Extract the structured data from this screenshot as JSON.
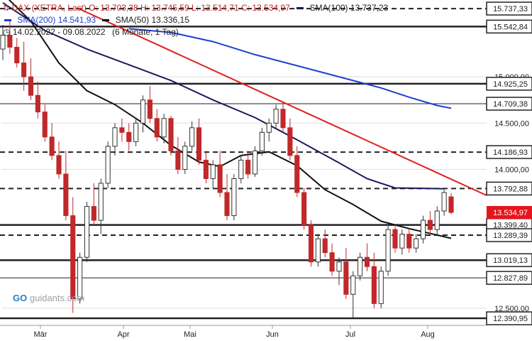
{
  "legend": {
    "instrument": "DAX (XETRA, Last)",
    "ohlc": "O: 13.703,38  H: 13.745,59  L: 13.514,71  C: 13.534,97",
    "sma100_label": "SMA(100)",
    "sma100_value": "13.737,23",
    "sma200_label": "SMA(200)",
    "sma200_value": "14.541,93",
    "sma50_label": "SMA(50)",
    "sma50_value": "13.336,15",
    "range": "14.02.2022 - 09.08.2022",
    "period": "(6 Monate, 1 Tag)"
  },
  "brand": "guidants.com",
  "colors": {
    "sma100": "#1a1a5c",
    "sma200": "#1f3fd1",
    "sma50": "#111111",
    "trendline": "#e02020",
    "up": "#333333",
    "down": "#c0282a",
    "last_badge": "#e8141c"
  },
  "chart_data": {
    "type": "candlestick",
    "x_labels": [
      "Mär",
      "Apr",
      "Mai",
      "Jun",
      "Jul",
      "Aug"
    ],
    "y_axis_ticks": [
      {
        "value": 15000,
        "label": "15.000,00"
      },
      {
        "value": 14500,
        "label": "14.500,00"
      },
      {
        "value": 14000,
        "label": "14.000,00"
      },
      {
        "value": 12500,
        "label": "12.500,00"
      }
    ],
    "ylim": [
      12330,
      15830
    ],
    "levels": [
      {
        "value": 15737.33,
        "label": "15.737,33",
        "style": "dashed"
      },
      {
        "value": 15542.84,
        "label": "15.542,84",
        "style": "solid-thick"
      },
      {
        "value": 14925.25,
        "label": "14.925,25",
        "style": "solid-thick"
      },
      {
        "value": 14709.38,
        "label": "14.709,38",
        "style": "solid-thin"
      },
      {
        "value": 14186.93,
        "label": "14.186,93",
        "style": "dashed"
      },
      {
        "value": 13792.88,
        "label": "13.792,88",
        "style": "dashed"
      },
      {
        "value": 13399.4,
        "label": "13.399,40",
        "style": "solid-thick"
      },
      {
        "value": 13289.39,
        "label": "13.289,39",
        "style": "dashed"
      },
      {
        "value": 13019.13,
        "label": "13.019,13",
        "style": "solid-thick"
      },
      {
        "value": 12827.89,
        "label": "12.827,89",
        "style": "solid-thin"
      },
      {
        "value": 12390.95,
        "label": "12.390,95",
        "style": "solid-thick"
      }
    ],
    "last_price": {
      "value": 13534.97,
      "label": "13.534,97"
    },
    "trendline": [
      {
        "x": "14.02.2022",
        "y": 15740
      },
      {
        "x": "09.08.2022",
        "y": 13880
      }
    ],
    "candles": [
      [
        15300,
        15560,
        15180,
        15450
      ],
      [
        15450,
        15600,
        15250,
        15320
      ],
      [
        15320,
        15420,
        15100,
        15150
      ],
      [
        15150,
        15380,
        14850,
        15000
      ],
      [
        15000,
        15200,
        14750,
        14800
      ],
      [
        14800,
        14950,
        14550,
        14620
      ],
      [
        14620,
        14700,
        14300,
        14350
      ],
      [
        14350,
        14500,
        14100,
        14150
      ],
      [
        14150,
        14300,
        13900,
        13950
      ],
      [
        13950,
        14200,
        13450,
        13500
      ],
      [
        13500,
        13700,
        12450,
        12600
      ],
      [
        12600,
        13100,
        12550,
        13050
      ],
      [
        13050,
        13650,
        13000,
        13600
      ],
      [
        13600,
        13850,
        13400,
        13450
      ],
      [
        13450,
        13900,
        13300,
        13850
      ],
      [
        13850,
        14300,
        13800,
        14250
      ],
      [
        14250,
        14500,
        14150,
        14450
      ],
      [
        14450,
        14550,
        14300,
        14400
      ],
      [
        14400,
        14500,
        14200,
        14300
      ],
      [
        14300,
        14550,
        14250,
        14500
      ],
      [
        14500,
        14800,
        14400,
        14750
      ],
      [
        14750,
        14900,
        14500,
        14550
      ],
      [
        14550,
        14650,
        14300,
        14350
      ],
      [
        14350,
        14600,
        14280,
        14550
      ],
      [
        14550,
        14580,
        14150,
        14200
      ],
      [
        14200,
        14350,
        13950,
        14000
      ],
      [
        14000,
        14300,
        13950,
        14250
      ],
      [
        14250,
        14520,
        14200,
        14450
      ],
      [
        14450,
        14550,
        14050,
        14100
      ],
      [
        14100,
        14200,
        13850,
        13900
      ],
      [
        13900,
        14100,
        13800,
        14050
      ],
      [
        14050,
        14200,
        13700,
        13750
      ],
      [
        13750,
        13950,
        13450,
        13500
      ],
      [
        13500,
        13950,
        13450,
        13900
      ],
      [
        13900,
        14150,
        13850,
        14100
      ],
      [
        14100,
        14200,
        13900,
        13950
      ],
      [
        13950,
        14250,
        13920,
        14200
      ],
      [
        14200,
        14450,
        14150,
        14400
      ],
      [
        14400,
        14550,
        14300,
        14500
      ],
      [
        14500,
        14700,
        14450,
        14650
      ],
      [
        14650,
        14720,
        14400,
        14450
      ],
      [
        14450,
        14550,
        14100,
        14150
      ],
      [
        14150,
        14250,
        13700,
        13750
      ],
      [
        13750,
        13800,
        13350,
        13400
      ],
      [
        13400,
        13450,
        12950,
        13000
      ],
      [
        13000,
        13300,
        12950,
        13250
      ],
      [
        13250,
        13350,
        13050,
        13100
      ],
      [
        13100,
        13200,
        12850,
        12900
      ],
      [
        12900,
        13050,
        12750,
        13000
      ],
      [
        13000,
        13150,
        12600,
        12650
      ],
      [
        12650,
        12900,
        12400,
        12850
      ],
      [
        12850,
        13100,
        12800,
        13050
      ],
      [
        13050,
        13200,
        12900,
        12950
      ],
      [
        12950,
        13100,
        12500,
        12550
      ],
      [
        12550,
        12950,
        12500,
        12900
      ],
      [
        12900,
        13400,
        12850,
        13350
      ],
      [
        13350,
        13400,
        13100,
        13150
      ],
      [
        13150,
        13350,
        13080,
        13300
      ],
      [
        13300,
        13350,
        13100,
        13150
      ],
      [
        13150,
        13300,
        13100,
        13250
      ],
      [
        13250,
        13500,
        13200,
        13450
      ],
      [
        13450,
        13550,
        13300,
        13350
      ],
      [
        13350,
        13600,
        13300,
        13550
      ],
      [
        13550,
        13780,
        13500,
        13750
      ],
      [
        13703.38,
        13745.59,
        13514.71,
        13534.97
      ]
    ],
    "sma50": [
      [
        0,
        15900
      ],
      [
        4,
        15600
      ],
      [
        8,
        15150
      ],
      [
        12,
        14850
      ],
      [
        16,
        14700
      ],
      [
        20,
        14500
      ],
      [
        24,
        14260
      ],
      [
        28,
        14080
      ],
      [
        31,
        14030
      ],
      [
        34,
        14150
      ],
      [
        38,
        14190
      ],
      [
        42,
        14040
      ],
      [
        46,
        13780
      ],
      [
        50,
        13620
      ],
      [
        54,
        13440
      ],
      [
        58,
        13360
      ],
      [
        62,
        13290
      ],
      [
        64,
        13255
      ]
    ],
    "sma100": [
      [
        0,
        15800
      ],
      [
        6,
        15500
      ],
      [
        12,
        15300
      ],
      [
        18,
        15130
      ],
      [
        24,
        14960
      ],
      [
        30,
        14750
      ],
      [
        36,
        14560
      ],
      [
        42,
        14320
      ],
      [
        48,
        14070
      ],
      [
        52,
        13900
      ],
      [
        56,
        13800
      ],
      [
        60,
        13795
      ],
      [
        63,
        13790
      ]
    ],
    "sma200": [
      [
        18,
        15520
      ],
      [
        24,
        15480
      ],
      [
        30,
        15380
      ],
      [
        36,
        15240
      ],
      [
        42,
        15120
      ],
      [
        48,
        15000
      ],
      [
        54,
        14880
      ],
      [
        58,
        14780
      ],
      [
        62,
        14690
      ],
      [
        64,
        14660
      ]
    ]
  }
}
